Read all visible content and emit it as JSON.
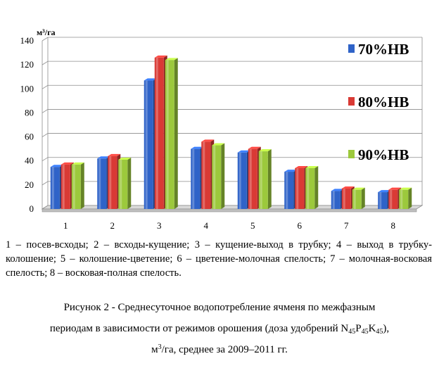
{
  "chart_data": {
    "type": "bar",
    "unit_label": "м³/га",
    "categories": [
      "1",
      "2",
      "3",
      "4",
      "5",
      "6",
      "7",
      "8"
    ],
    "ylim": [
      0,
      140
    ],
    "yticks": [
      0,
      20,
      40,
      60,
      80,
      100,
      120,
      140
    ],
    "grid": true,
    "legend_position": "right",
    "series": [
      {
        "name": "70%НВ",
        "color": "#2f63c8",
        "values": [
          35,
          42,
          107,
          50,
          47,
          31,
          15,
          14
        ]
      },
      {
        "name": "80%НВ",
        "color": "#d93a35",
        "values": [
          37,
          44,
          126,
          56,
          50,
          34,
          17,
          16
        ]
      },
      {
        "name": "90%НВ",
        "color": "#9cc93c",
        "values": [
          37,
          41,
          124,
          53,
          48,
          34,
          16,
          16
        ]
      }
    ]
  },
  "legend_description": "1 – посев-всходы; 2 – всходы-кущение; 3 – кущение-выход в трубку; 4 – выход в трубку-колошение; 5 – колошение-цветение; 6 – цветение-молочная спелость; 7 – молочная-восковая спелость; 8 – восковая-полная спелость.",
  "caption": {
    "line1": "Рисунок 2 - Среднесуточное водопотребление ячменя по межфазным",
    "line2_prefix": "периодам в зависимости от режимов орошения (доза удобрений N",
    "sub1": "45",
    "p": "P",
    "sub2": "45",
    "k": "K",
    "sub3": "45",
    "line2_suffix": "),",
    "line3_unit_m": "м",
    "line3_sup": "3",
    "line3_rest": "/га, среднее за 2009–2011 гг."
  }
}
